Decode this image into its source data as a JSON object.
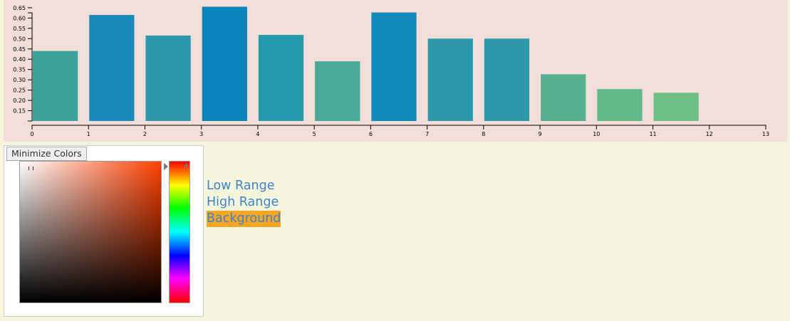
{
  "chart_data": {
    "type": "bar",
    "categories": [
      "0",
      "1",
      "2",
      "3",
      "4",
      "5",
      "6",
      "7",
      "8",
      "9",
      "10",
      "11"
    ],
    "values": [
      0.44,
      0.615,
      0.515,
      0.655,
      0.518,
      0.39,
      0.627,
      0.5,
      0.5,
      0.327,
      0.255,
      0.237
    ],
    "bar_colors": [
      "#3ea29b",
      "#1b8abb",
      "#2b99ab",
      "#0a84bb",
      "#2799ac",
      "#48aa96",
      "#1089bc",
      "#2b99a9",
      "#2b99a9",
      "#55b090",
      "#63b98a",
      "#6bbe86"
    ],
    "xlim": [
      0,
      13
    ],
    "x_ticks": [
      "0",
      "1",
      "2",
      "3",
      "4",
      "5",
      "6",
      "7",
      "8",
      "9",
      "10",
      "11",
      "12",
      "13"
    ],
    "ylim": [
      0.1,
      0.66
    ],
    "y_ticks": [
      "0.15",
      "0.20",
      "0.25",
      "0.30",
      "0.35",
      "0.40",
      "0.45",
      "0.50",
      "0.55",
      "0.60",
      "0.65"
    ],
    "title": "",
    "xlabel": "",
    "ylabel": "",
    "background": "#f2ded8",
    "grid": false
  },
  "controls": {
    "minimize_label": "Minimize Colors",
    "low_range_label": "Low Range",
    "high_range_label": "High Range",
    "background_label": "Background",
    "selected_hue": "#ff4000",
    "active_option_color": "#f5a623",
    "link_color": "#3f83c9"
  },
  "page": {
    "background": "#f5f5dc"
  }
}
